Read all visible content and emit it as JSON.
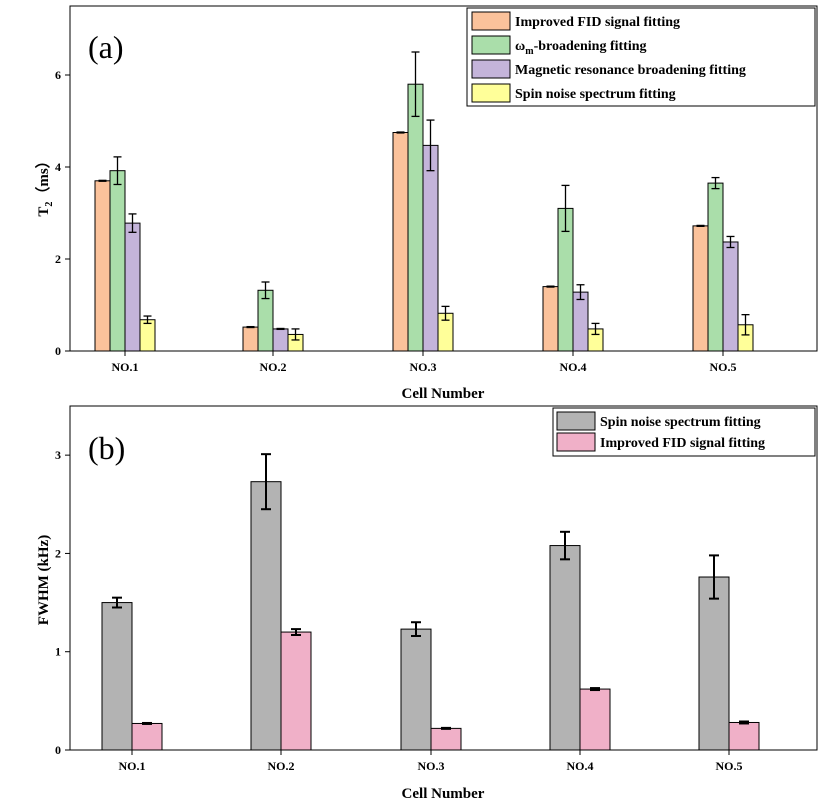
{
  "chart_data": [
    {
      "type": "bar",
      "panel_label": "(a)",
      "categories": [
        "NO.1",
        "NO.2",
        "NO.3",
        "NO.4",
        "NO.5"
      ],
      "xlabel": "Cell Number",
      "ylabel": "T2 (ms)",
      "ylabel_main": "T",
      "ylabel_sub": "2",
      "ylabel_unit": "（ms）",
      "ylim": [
        0,
        7.5
      ],
      "yticks": [
        0,
        2,
        4,
        6
      ],
      "legend_position": "top-right",
      "series": [
        {
          "name": "Improved FID signal fitting",
          "color": "#fbc29b",
          "values": [
            3.7,
            0.52,
            4.75,
            1.4,
            2.72
          ],
          "errors": [
            0.01,
            0.01,
            0.01,
            0.01,
            0.01
          ]
        },
        {
          "name": "ωm-broadening fitting",
          "name_main": "ω",
          "name_sub": "m",
          "name_rest": "-broadening fitting",
          "color": "#aadeaa",
          "values": [
            3.92,
            1.32,
            5.8,
            3.1,
            3.65
          ],
          "errors": [
            0.3,
            0.18,
            0.7,
            0.5,
            0.12
          ]
        },
        {
          "name": "Magnetic resonance broadening fitting",
          "color": "#c4b4da",
          "values": [
            2.78,
            0.48,
            4.47,
            1.28,
            2.37
          ],
          "errors": [
            0.2,
            0.01,
            0.55,
            0.16,
            0.12
          ]
        },
        {
          "name": "Spin noise spectrum fitting",
          "color": "#ffff99",
          "values": [
            0.68,
            0.36,
            0.82,
            0.48,
            0.57
          ],
          "errors": [
            0.08,
            0.12,
            0.15,
            0.12,
            0.22
          ]
        }
      ]
    },
    {
      "type": "bar",
      "panel_label": "(b)",
      "categories": [
        "NO.1",
        "NO.2",
        "NO.3",
        "NO.4",
        "NO.5"
      ],
      "xlabel": "Cell Number",
      "ylabel": "FWHM (kHz)",
      "ylim": [
        0,
        3.5
      ],
      "yticks": [
        0,
        1,
        2,
        3
      ],
      "legend_position": "top-right",
      "series": [
        {
          "name": "Spin noise spectrum fitting",
          "color": "#b3b3b3",
          "values": [
            1.5,
            2.73,
            1.23,
            2.08,
            1.76
          ],
          "errors": [
            0.05,
            0.28,
            0.07,
            0.14,
            0.22
          ]
        },
        {
          "name": "Improved FID signal fitting",
          "color": "#f0b0c8",
          "values": [
            0.27,
            1.2,
            0.22,
            0.62,
            0.28
          ],
          "errors": [
            0.005,
            0.03,
            0.005,
            0.01,
            0.01
          ]
        }
      ]
    }
  ]
}
